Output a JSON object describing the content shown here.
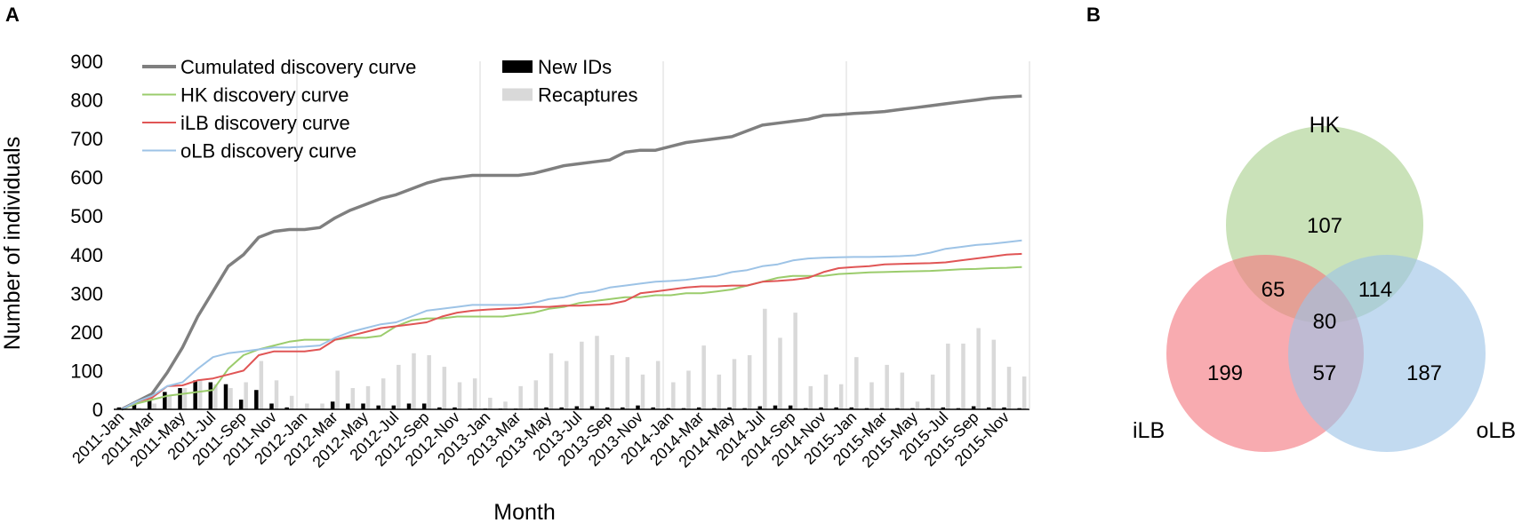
{
  "panels": {
    "a": "A",
    "b": "B"
  },
  "chart_data": [
    {
      "type": "bar+line",
      "xlabel": "Month",
      "ylabel": "Number of individuals",
      "ylim": [
        0,
        900
      ],
      "yticks": [
        "0",
        "100",
        "200",
        "300",
        "400",
        "500",
        "600",
        "700",
        "800",
        "900"
      ],
      "grid": "vertical lines at each January",
      "legend_position": "top-left",
      "tick_labels": [
        "2011-Jan",
        "2011-Mar",
        "2011-May",
        "2011-Jul",
        "2011-Sep",
        "2011-Nov",
        "2012-Jan",
        "2012-Mar",
        "2012-May",
        "2012-Jul",
        "2012-Sep",
        "2012-Nov",
        "2013-Jan",
        "2013-Mar",
        "2013-May",
        "2013-Jul",
        "2013-Sep",
        "2013-Nov",
        "2014-Jan",
        "2014-Mar",
        "2014-May",
        "2014-Jul",
        "2014-Sep",
        "2014-Nov",
        "2015-Jan",
        "2015-Mar",
        "2015-May",
        "2015-Jul",
        "2015-Sep",
        "2015-Nov"
      ],
      "x": [
        "2011-Jan",
        "2011-Feb",
        "2011-Mar",
        "2011-Apr",
        "2011-May",
        "2011-Jun",
        "2011-Jul",
        "2011-Aug",
        "2011-Sep",
        "2011-Oct",
        "2011-Nov",
        "2011-Dec",
        "2012-Jan",
        "2012-Feb",
        "2012-Mar",
        "2012-Apr",
        "2012-May",
        "2012-Jun",
        "2012-Jul",
        "2012-Aug",
        "2012-Sep",
        "2012-Oct",
        "2012-Nov",
        "2012-Dec",
        "2013-Jan",
        "2013-Feb",
        "2013-Mar",
        "2013-Apr",
        "2013-May",
        "2013-Jun",
        "2013-Jul",
        "2013-Aug",
        "2013-Sep",
        "2013-Oct",
        "2013-Nov",
        "2013-Dec",
        "2014-Jan",
        "2014-Feb",
        "2014-Mar",
        "2014-Apr",
        "2014-May",
        "2014-Jun",
        "2014-Jul",
        "2014-Aug",
        "2014-Sep",
        "2014-Oct",
        "2014-Nov",
        "2014-Dec",
        "2015-Jan",
        "2015-Feb",
        "2015-Mar",
        "2015-Apr",
        "2015-May",
        "2015-Jun",
        "2015-Jul",
        "2015-Aug",
        "2015-Sep",
        "2015-Oct",
        "2015-Nov",
        "2015-Dec"
      ],
      "bar_series": [
        {
          "name": "New IDs",
          "color": "#000000",
          "values": [
            5,
            15,
            25,
            45,
            55,
            75,
            70,
            65,
            25,
            50,
            15,
            5,
            0,
            0,
            20,
            15,
            15,
            10,
            10,
            15,
            15,
            5,
            5,
            2,
            2,
            2,
            2,
            2,
            5,
            5,
            8,
            8,
            5,
            5,
            10,
            5,
            3,
            3,
            5,
            3,
            5,
            3,
            8,
            10,
            10,
            3,
            5,
            5,
            5,
            3,
            3,
            3,
            3,
            3,
            5,
            3,
            8,
            5,
            5,
            3
          ]
        },
        {
          "name": "Recaptures",
          "color": "#d9d9d9",
          "values": [
            0,
            5,
            15,
            35,
            55,
            75,
            65,
            55,
            70,
            125,
            75,
            35,
            15,
            15,
            100,
            55,
            60,
            80,
            115,
            145,
            140,
            110,
            70,
            80,
            30,
            20,
            60,
            75,
            145,
            125,
            175,
            190,
            140,
            135,
            90,
            125,
            70,
            100,
            165,
            90,
            130,
            140,
            260,
            185,
            250,
            60,
            90,
            65,
            135,
            70,
            115,
            95,
            20,
            90,
            170,
            170,
            210,
            180,
            110,
            85
          ]
        }
      ],
      "series": [
        {
          "name": "Cumulated discovery curve",
          "color": "#7f7f7f",
          "values": [
            0,
            20,
            40,
            95,
            160,
            240,
            305,
            370,
            400,
            445,
            460,
            465,
            465,
            470,
            495,
            515,
            530,
            545,
            555,
            570,
            585,
            595,
            600,
            605,
            605,
            605,
            605,
            610,
            620,
            630,
            635,
            640,
            645,
            665,
            670,
            670,
            680,
            690,
            695,
            700,
            705,
            720,
            735,
            740,
            745,
            750,
            760,
            762,
            765,
            767,
            770,
            775,
            780,
            785,
            790,
            795,
            800,
            805,
            808,
            810
          ]
        },
        {
          "name": "HK discovery curve",
          "color": "#9bcc6c",
          "values": [
            0,
            15,
            25,
            35,
            40,
            45,
            50,
            105,
            140,
            155,
            165,
            175,
            180,
            180,
            180,
            185,
            185,
            190,
            215,
            230,
            235,
            235,
            240,
            240,
            240,
            240,
            245,
            250,
            260,
            265,
            275,
            280,
            285,
            290,
            290,
            295,
            295,
            300,
            300,
            305,
            310,
            320,
            330,
            340,
            345,
            345,
            345,
            350,
            352,
            354,
            355,
            356,
            357,
            358,
            360,
            362,
            363,
            365,
            366,
            368
          ]
        },
        {
          "name": "iLB discovery curve",
          "color": "#e05555",
          "values": [
            0,
            20,
            30,
            60,
            62,
            75,
            80,
            90,
            100,
            140,
            150,
            150,
            150,
            155,
            180,
            190,
            200,
            210,
            215,
            220,
            225,
            240,
            250,
            255,
            258,
            260,
            262,
            265,
            265,
            268,
            268,
            270,
            272,
            280,
            300,
            305,
            310,
            315,
            318,
            318,
            320,
            320,
            330,
            332,
            335,
            340,
            355,
            365,
            368,
            370,
            375,
            376,
            377,
            378,
            380,
            385,
            390,
            395,
            400,
            402
          ]
        },
        {
          "name": "oLB discovery curve",
          "color": "#9dc3e6",
          "values": [
            0,
            20,
            35,
            60,
            70,
            105,
            135,
            145,
            150,
            155,
            160,
            160,
            162,
            165,
            185,
            200,
            210,
            220,
            225,
            240,
            255,
            260,
            265,
            270,
            270,
            270,
            270,
            275,
            285,
            290,
            300,
            305,
            315,
            320,
            325,
            330,
            332,
            335,
            340,
            345,
            355,
            360,
            370,
            375,
            385,
            390,
            392,
            393,
            394,
            394,
            395,
            396,
            398,
            405,
            415,
            420,
            425,
            428,
            432,
            437
          ]
        }
      ]
    },
    {
      "type": "venn",
      "sets": [
        {
          "name": "HK",
          "color": "#a9d18e"
        },
        {
          "name": "iLB",
          "color": "#f4777f"
        },
        {
          "name": "oLB",
          "color": "#9dc3e6"
        }
      ],
      "regions": [
        {
          "sets": [
            "HK"
          ],
          "value": 107
        },
        {
          "sets": [
            "HK",
            "iLB"
          ],
          "value": 65
        },
        {
          "sets": [
            "HK",
            "oLB"
          ],
          "value": 114
        },
        {
          "sets": [
            "HK",
            "iLB",
            "oLB"
          ],
          "value": 80
        },
        {
          "sets": [
            "iLB"
          ],
          "value": 199
        },
        {
          "sets": [
            "iLB",
            "oLB"
          ],
          "value": 57
        },
        {
          "sets": [
            "oLB"
          ],
          "value": 187
        }
      ]
    }
  ]
}
